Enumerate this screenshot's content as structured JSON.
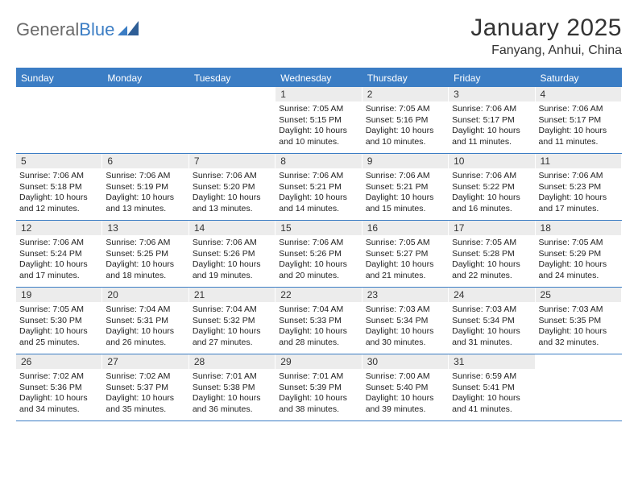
{
  "logo": {
    "text_a": "General",
    "text_b": "Blue"
  },
  "title": "January 2025",
  "location": "Fanyang, Anhui, China",
  "colors": {
    "accent": "#3b7dc4",
    "header_bg": "#3b7dc4",
    "daynum_bg": "#ececec",
    "text": "#333333",
    "body_text": "#222222",
    "logo_gray": "#6b6b6b"
  },
  "days_of_week": [
    "Sunday",
    "Monday",
    "Tuesday",
    "Wednesday",
    "Thursday",
    "Friday",
    "Saturday"
  ],
  "weeks": [
    [
      {
        "n": "",
        "empty": true
      },
      {
        "n": "",
        "empty": true
      },
      {
        "n": "",
        "empty": true
      },
      {
        "n": "1",
        "sunrise": "7:05 AM",
        "sunset": "5:15 PM",
        "daylight": "10 hours and 10 minutes."
      },
      {
        "n": "2",
        "sunrise": "7:05 AM",
        "sunset": "5:16 PM",
        "daylight": "10 hours and 10 minutes."
      },
      {
        "n": "3",
        "sunrise": "7:06 AM",
        "sunset": "5:17 PM",
        "daylight": "10 hours and 11 minutes."
      },
      {
        "n": "4",
        "sunrise": "7:06 AM",
        "sunset": "5:17 PM",
        "daylight": "10 hours and 11 minutes."
      }
    ],
    [
      {
        "n": "5",
        "sunrise": "7:06 AM",
        "sunset": "5:18 PM",
        "daylight": "10 hours and 12 minutes."
      },
      {
        "n": "6",
        "sunrise": "7:06 AM",
        "sunset": "5:19 PM",
        "daylight": "10 hours and 13 minutes."
      },
      {
        "n": "7",
        "sunrise": "7:06 AM",
        "sunset": "5:20 PM",
        "daylight": "10 hours and 13 minutes."
      },
      {
        "n": "8",
        "sunrise": "7:06 AM",
        "sunset": "5:21 PM",
        "daylight": "10 hours and 14 minutes."
      },
      {
        "n": "9",
        "sunrise": "7:06 AM",
        "sunset": "5:21 PM",
        "daylight": "10 hours and 15 minutes."
      },
      {
        "n": "10",
        "sunrise": "7:06 AM",
        "sunset": "5:22 PM",
        "daylight": "10 hours and 16 minutes."
      },
      {
        "n": "11",
        "sunrise": "7:06 AM",
        "sunset": "5:23 PM",
        "daylight": "10 hours and 17 minutes."
      }
    ],
    [
      {
        "n": "12",
        "sunrise": "7:06 AM",
        "sunset": "5:24 PM",
        "daylight": "10 hours and 17 minutes."
      },
      {
        "n": "13",
        "sunrise": "7:06 AM",
        "sunset": "5:25 PM",
        "daylight": "10 hours and 18 minutes."
      },
      {
        "n": "14",
        "sunrise": "7:06 AM",
        "sunset": "5:26 PM",
        "daylight": "10 hours and 19 minutes."
      },
      {
        "n": "15",
        "sunrise": "7:06 AM",
        "sunset": "5:26 PM",
        "daylight": "10 hours and 20 minutes."
      },
      {
        "n": "16",
        "sunrise": "7:05 AM",
        "sunset": "5:27 PM",
        "daylight": "10 hours and 21 minutes."
      },
      {
        "n": "17",
        "sunrise": "7:05 AM",
        "sunset": "5:28 PM",
        "daylight": "10 hours and 22 minutes."
      },
      {
        "n": "18",
        "sunrise": "7:05 AM",
        "sunset": "5:29 PM",
        "daylight": "10 hours and 24 minutes."
      }
    ],
    [
      {
        "n": "19",
        "sunrise": "7:05 AM",
        "sunset": "5:30 PM",
        "daylight": "10 hours and 25 minutes."
      },
      {
        "n": "20",
        "sunrise": "7:04 AM",
        "sunset": "5:31 PM",
        "daylight": "10 hours and 26 minutes."
      },
      {
        "n": "21",
        "sunrise": "7:04 AM",
        "sunset": "5:32 PM",
        "daylight": "10 hours and 27 minutes."
      },
      {
        "n": "22",
        "sunrise": "7:04 AM",
        "sunset": "5:33 PM",
        "daylight": "10 hours and 28 minutes."
      },
      {
        "n": "23",
        "sunrise": "7:03 AM",
        "sunset": "5:34 PM",
        "daylight": "10 hours and 30 minutes."
      },
      {
        "n": "24",
        "sunrise": "7:03 AM",
        "sunset": "5:34 PM",
        "daylight": "10 hours and 31 minutes."
      },
      {
        "n": "25",
        "sunrise": "7:03 AM",
        "sunset": "5:35 PM",
        "daylight": "10 hours and 32 minutes."
      }
    ],
    [
      {
        "n": "26",
        "sunrise": "7:02 AM",
        "sunset": "5:36 PM",
        "daylight": "10 hours and 34 minutes."
      },
      {
        "n": "27",
        "sunrise": "7:02 AM",
        "sunset": "5:37 PM",
        "daylight": "10 hours and 35 minutes."
      },
      {
        "n": "28",
        "sunrise": "7:01 AM",
        "sunset": "5:38 PM",
        "daylight": "10 hours and 36 minutes."
      },
      {
        "n": "29",
        "sunrise": "7:01 AM",
        "sunset": "5:39 PM",
        "daylight": "10 hours and 38 minutes."
      },
      {
        "n": "30",
        "sunrise": "7:00 AM",
        "sunset": "5:40 PM",
        "daylight": "10 hours and 39 minutes."
      },
      {
        "n": "31",
        "sunrise": "6:59 AM",
        "sunset": "5:41 PM",
        "daylight": "10 hours and 41 minutes."
      },
      {
        "n": "",
        "empty": true
      }
    ]
  ],
  "labels": {
    "sunrise": "Sunrise:",
    "sunset": "Sunset:",
    "daylight": "Daylight:"
  }
}
